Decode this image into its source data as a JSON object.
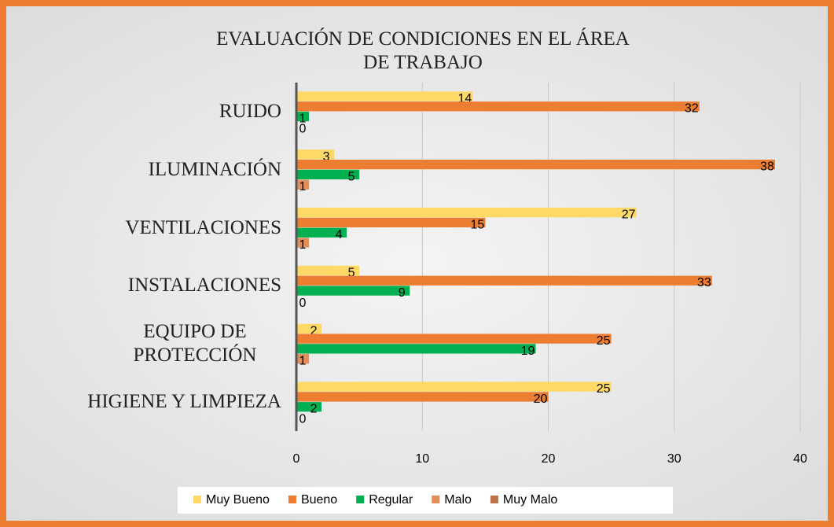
{
  "chart_data": {
    "type": "bar",
    "orientation": "horizontal",
    "title": "EVALUACIÓN DE CONDICIONES EN EL ÁREA DE TRABAJO",
    "categories": [
      "RUIDO",
      "ILUMINACIÓN",
      "VENTILACIONES",
      "INSTALACIONES",
      "EQUIPO DE PROTECCIÓN",
      "HIGIENE Y LIMPIEZA"
    ],
    "series": [
      {
        "name": "Muy Bueno",
        "color": "#ffd966",
        "values": [
          14,
          3,
          27,
          5,
          2,
          25
        ]
      },
      {
        "name": "Bueno",
        "color": "#ed7d31",
        "values": [
          32,
          38,
          15,
          33,
          25,
          20
        ]
      },
      {
        "name": "Regular",
        "color": "#00b050",
        "values": [
          1,
          5,
          4,
          9,
          19,
          2
        ]
      },
      {
        "name": "Malo",
        "color": "#e08f5c",
        "values": [
          0,
          1,
          1,
          0,
          1,
          0
        ]
      },
      {
        "name": "Muy Malo",
        "color": "#c0714a",
        "values": [
          null,
          null,
          null,
          null,
          null,
          null
        ]
      }
    ],
    "xlim": [
      0,
      40
    ],
    "xticks": [
      0,
      10,
      20,
      30,
      40
    ],
    "grid": true,
    "legend": "bottom"
  }
}
